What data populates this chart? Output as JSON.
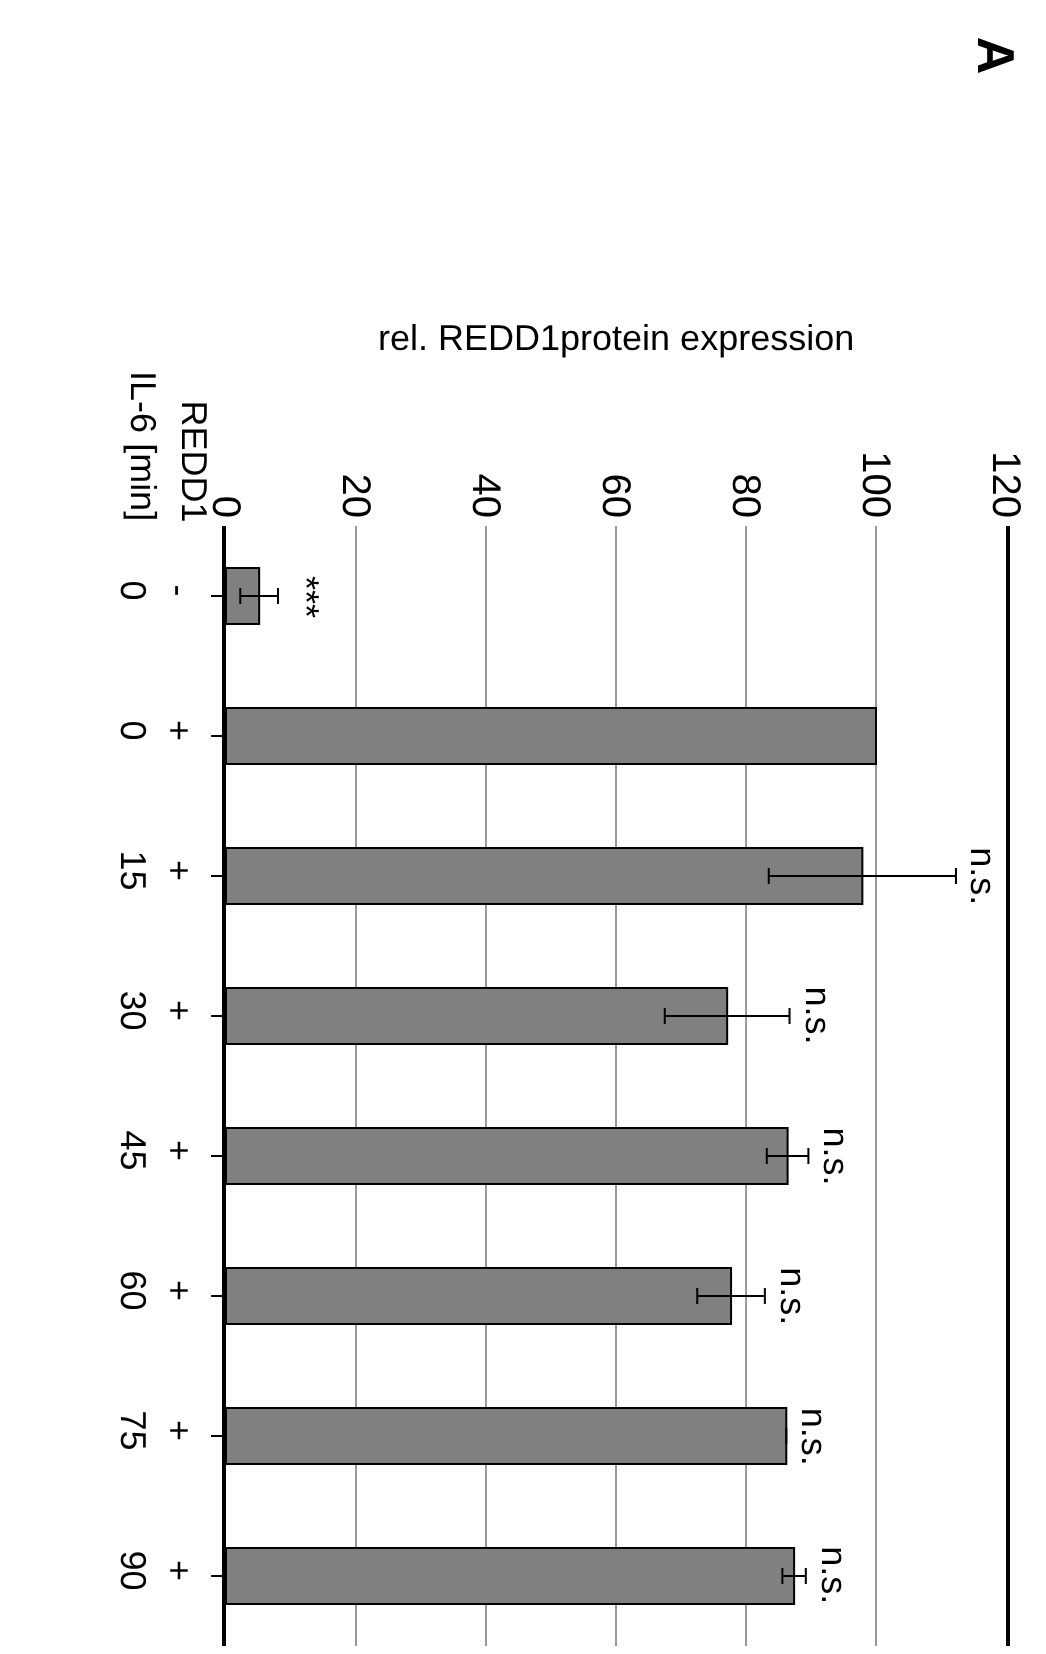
{
  "chart_data": {
    "type": "bar",
    "orientation": "horizontal",
    "title": "A",
    "ylabel": "rel. REDD1protein expression",
    "categories": [
      "-\n0",
      "+\n0",
      "+\n15",
      "+\n30",
      "+\n45",
      "+\n60",
      "+\n75",
      "+\n90"
    ],
    "values": [
      5.1,
      100,
      97.9,
      77.1,
      86.4,
      77.7,
      86.2,
      87.4
    ],
    "errors": [
      2.9,
      null,
      14.4,
      9.6,
      3.2,
      5.2,
      null,
      1.8
    ],
    "color": "#808080",
    "xlim": [
      0,
      120
    ],
    "xticks": [
      0,
      20,
      40,
      60,
      80,
      100,
      120
    ],
    "grid": "x",
    "annotations": [
      {
        "text": "***",
        "x": 8.0,
        "y": "-\n0"
      },
      {
        "text": "n.s.",
        "x": 112.1,
        "y": "+\n15"
      },
      {
        "text": "n.s.",
        "x": 86.7,
        "y": "+\n30"
      },
      {
        "text": "n.s.",
        "x": 89.6,
        "y": "+\n45"
      },
      {
        "text": "n.s.",
        "x": 82.9,
        "y": "+\n60"
      },
      {
        "text": "n.s.",
        "x": 86.2,
        "y": "+\n75"
      },
      {
        "text": "n.s.",
        "x": 89.2,
        "y": "+\n90"
      },
      "REDD1",
      "IL-6 [min]"
    ]
  }
}
